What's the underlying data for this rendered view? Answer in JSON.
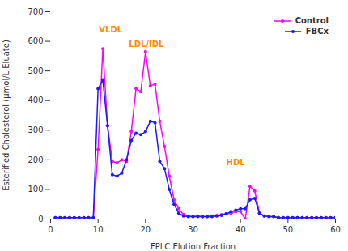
{
  "chart_data": {
    "type": "line",
    "xlabel": "FPLC Elution Fraction",
    "ylabel": "Esterified Cholesterol (μmol/L Eluate)",
    "x": [
      1,
      2,
      3,
      4,
      5,
      6,
      7,
      8,
      9,
      10,
      11,
      12,
      13,
      14,
      15,
      16,
      17,
      18,
      19,
      20,
      21,
      22,
      23,
      24,
      25,
      26,
      27,
      28,
      29,
      30,
      31,
      32,
      33,
      34,
      35,
      36,
      37,
      38,
      39,
      40,
      41,
      42,
      43,
      44,
      45,
      46,
      47,
      48,
      49,
      50,
      51,
      52,
      53,
      54,
      55,
      56,
      57,
      58,
      59,
      60
    ],
    "series": [
      {
        "name": "Control",
        "color": "#FF00FF",
        "marker": "circle",
        "values": [
          5,
          5,
          5,
          5,
          5,
          5,
          5,
          5,
          5,
          235,
          575,
          315,
          195,
          190,
          200,
          195,
          295,
          440,
          430,
          565,
          450,
          455,
          330,
          245,
          145,
          65,
          35,
          15,
          10,
          8,
          10,
          8,
          8,
          10,
          12,
          15,
          18,
          20,
          25,
          25,
          0,
          110,
          95,
          20,
          10,
          8,
          8,
          5,
          5,
          5,
          5,
          5,
          5,
          5,
          5,
          5,
          5,
          5,
          5,
          5
        ]
      },
      {
        "name": "FBCx",
        "color": "#1a1aff",
        "marker": "circle",
        "values": [
          5,
          5,
          5,
          5,
          5,
          5,
          5,
          5,
          5,
          440,
          470,
          315,
          150,
          145,
          155,
          200,
          265,
          290,
          285,
          295,
          330,
          325,
          195,
          170,
          100,
          50,
          20,
          10,
          8,
          8,
          8,
          8,
          8,
          8,
          10,
          12,
          18,
          25,
          30,
          35,
          35,
          65,
          70,
          20,
          10,
          8,
          8,
          5,
          5,
          5,
          5,
          5,
          5,
          5,
          5,
          5,
          5,
          5,
          5,
          5
        ]
      }
    ],
    "xlim": [
      0,
      60
    ],
    "ylim": [
      0,
      700
    ],
    "xticks": [
      0,
      10,
      20,
      30,
      40,
      50,
      60
    ],
    "yticks": [
      0,
      100,
      200,
      300,
      400,
      500,
      600,
      700
    ],
    "annotations": [
      {
        "text": "VLDL",
        "x": 10.2,
        "y": 650,
        "color": "#FF8C00"
      },
      {
        "text": "LDL/IDL",
        "x": 16.5,
        "y": 600,
        "color": "#FF8C00"
      },
      {
        "text": "HDL",
        "x": 37.0,
        "y": 200,
        "color": "#FF8C00"
      }
    ],
    "legend": "upper right",
    "grid": false
  }
}
